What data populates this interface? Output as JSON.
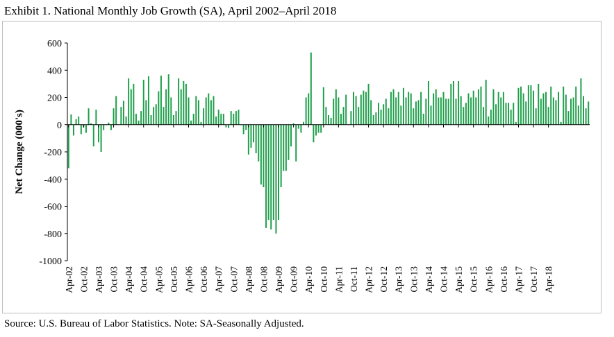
{
  "page": {
    "title": "Exhibit 1. National Monthly Job Growth (SA), April 2002–April 2018",
    "source": "Source: U.S. Bureau of Labor Statistics. Note: SA-Seasonally Adjusted."
  },
  "chart_data": {
    "type": "bar",
    "title": "Exhibit 1. National Monthly Job Growth (SA), April 2002–April 2018",
    "xlabel": "",
    "ylabel": "Net Change (000's)",
    "ylim": [
      -1000,
      600
    ],
    "yticks": [
      600,
      400,
      200,
      0,
      -200,
      -400,
      -600,
      -800,
      -1000
    ],
    "ytick_labels": [
      "600",
      "400",
      "200",
      "0",
      "-200",
      "-400",
      "-600",
      "-800",
      "-1000"
    ],
    "grid": false,
    "legend": "none",
    "bar_color": "#1e9e4a",
    "x_tick_labels": [
      "Apr-02",
      "Oct-02",
      "Apr-03",
      "Oct-03",
      "Apr-04",
      "Oct-04",
      "Apr-05",
      "Oct-05",
      "Apr-06",
      "Oct-06",
      "Apr-07",
      "Oct-07",
      "Apr-08",
      "Oct-08",
      "Apr-09",
      "Oct-09",
      "Apr-10",
      "Oct-10",
      "Apr-11",
      "Oct-11",
      "Apr-12",
      "Oct-12",
      "Apr-13",
      "Oct-13",
      "Apr-14",
      "Oct-14",
      "Apr-15",
      "Oct-15",
      "Apr-16",
      "Oct-16",
      "Apr-17",
      "Oct-17",
      "Apr-18"
    ],
    "first_month": "Apr-02",
    "last_month": "Apr-18",
    "values": [
      -320,
      75,
      -80,
      40,
      60,
      -70,
      -20,
      -60,
      120,
      10,
      -160,
      110,
      -130,
      -200,
      -40,
      0,
      15,
      -40,
      120,
      210,
      0,
      130,
      175,
      60,
      340,
      260,
      300,
      80,
      30,
      100,
      330,
      180,
      355,
      70,
      130,
      150,
      245,
      360,
      130,
      260,
      370,
      200,
      70,
      100,
      340,
      260,
      320,
      300,
      200,
      30,
      80,
      210,
      180,
      20,
      120,
      200,
      230,
      180,
      210,
      60,
      110,
      80,
      80,
      -20,
      -25,
      100,
      80,
      100,
      110,
      0,
      -70,
      -40,
      -220,
      -170,
      -130,
      -210,
      -270,
      -440,
      -460,
      -760,
      -700,
      -770,
      -700,
      -800,
      -700,
      -460,
      -340,
      -340,
      -260,
      -160,
      10,
      -270,
      -30,
      -60,
      20,
      200,
      230,
      530,
      -130,
      -80,
      -60,
      -60,
      275,
      130,
      70,
      50,
      190,
      260,
      200,
      80,
      130,
      220,
      0,
      100,
      240,
      210,
      130,
      220,
      250,
      240,
      300,
      180,
      70,
      90,
      160,
      110,
      150,
      190,
      120,
      240,
      260,
      200,
      240,
      140,
      270,
      200,
      240,
      230,
      120,
      170,
      180,
      240,
      80,
      190,
      320,
      140,
      230,
      260,
      200,
      200,
      240,
      190,
      190,
      300,
      320,
      190,
      320,
      210,
      130,
      160,
      230,
      200,
      250,
      200,
      260,
      280,
      130,
      330,
      60,
      110,
      260,
      150,
      240,
      200,
      240,
      160,
      160,
      110,
      160,
      20,
      270,
      280,
      230,
      170,
      290,
      290,
      250,
      120,
      300,
      190,
      230,
      240,
      130,
      280,
      200,
      180,
      240,
      20,
      280,
      220,
      100,
      190,
      200,
      280,
      140,
      340,
      210,
      120,
      170
    ],
    "value_precision": "approximate, read from chart (thousands)"
  }
}
